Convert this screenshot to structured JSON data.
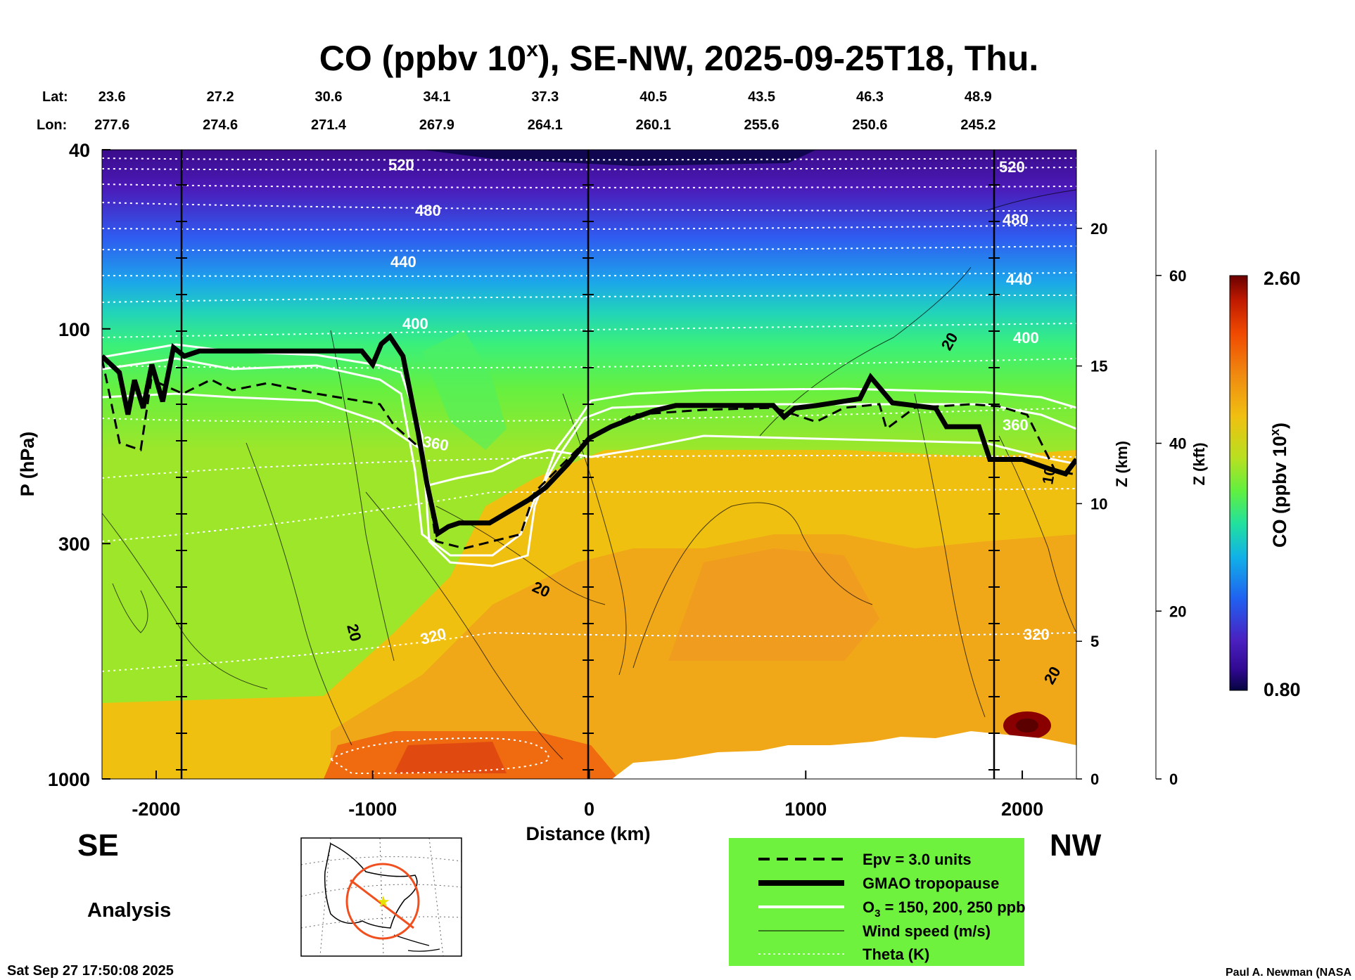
{
  "title": {
    "main": "CO (ppbv 10",
    "sup": "x",
    "rest": "), SE-NW, 2025-09-25T18, Thu."
  },
  "header": {
    "lat_label": "Lat:",
    "lon_label": "Lon:",
    "lat": [
      "23.6",
      "27.2",
      "30.6",
      "34.1",
      "37.3",
      "40.5",
      "43.5",
      "46.3",
      "48.9"
    ],
    "lon": [
      "277.6",
      "274.6",
      "271.4",
      "267.9",
      "264.1",
      "260.1",
      "255.6",
      "250.6",
      "245.2"
    ]
  },
  "axes": {
    "y_label": "P (hPa)",
    "y_ticks": [
      "40",
      "100",
      "300",
      "1000"
    ],
    "x_label": "Distance (km)",
    "x_ticks": [
      "-2000",
      "-1000",
      "0",
      "1000",
      "2000"
    ],
    "z_label": "Z (km)",
    "z_ticks": [
      "0",
      "5",
      "10",
      "15",
      "20"
    ],
    "kft_label": "Z (kft)",
    "kft_ticks": [
      "0",
      "20",
      "40",
      "60"
    ]
  },
  "side_labels": {
    "se": "SE",
    "nw": "NW",
    "analysis": "Analysis"
  },
  "colorbar": {
    "label": "CO (ppbv 10",
    "label_sup": "x",
    "label_end": ")",
    "max": "2.60",
    "min": "0.80"
  },
  "legend": {
    "items": [
      {
        "label": "Epv = 3.0 units"
      },
      {
        "label": "GMAO tropopause"
      },
      {
        "label": "O",
        "sub": "3",
        "rest": " = 150, 200, 250 ppb"
      },
      {
        "label": "Wind speed (m/s)"
      },
      {
        "label": "Theta (K)"
      }
    ],
    "background": "#6ef23e"
  },
  "footer": {
    "timestamp": "Sat Sep 27 17:50:08 2025",
    "credit": "Paul A. Newman (NASA"
  },
  "chart_data": {
    "type": "heatmap",
    "title": "CO (ppbv 10^x), SE-NW, 2025-09-25T18, Thu.",
    "xlabel": "Distance (km)",
    "ylabel": "P (hPa)",
    "xlim": [
      -2250,
      2250
    ],
    "ylim": [
      1000,
      40
    ],
    "y_scale": "log",
    "colorbar": {
      "min": 0.8,
      "max": 2.6,
      "label": "CO (ppbv 10^x)"
    },
    "theta_contours": [
      {
        "label": "520",
        "pressure": 47
      },
      {
        "label": "480",
        "pressure": 60
      },
      {
        "label": "440",
        "pressure": 76
      },
      {
        "label": "400",
        "pressure": 100
      },
      {
        "label": "360",
        "pressure": 185
      },
      {
        "label": "320",
        "pressure": 510
      }
    ],
    "wind_speed_labels": [
      {
        "label": "20",
        "x": -1050,
        "p": 530
      },
      {
        "label": "20",
        "x": -220,
        "p": 370
      },
      {
        "label": "20",
        "x": 1710,
        "p": 108
      },
      {
        "label": "20",
        "x": 2120,
        "p": 610
      },
      {
        "label": "10",
        "x": 2120,
        "p": 240
      }
    ],
    "cross_section": {
      "lat": [
        23.6,
        27.2,
        30.6,
        34.1,
        37.3,
        40.5,
        43.5,
        46.3,
        48.9
      ],
      "lon": [
        277.6,
        274.6,
        271.4,
        267.9,
        264.1,
        260.1,
        255.6,
        250.6,
        245.2
      ]
    },
    "tropopause": {
      "x": [
        -2250,
        -2170,
        -2130,
        -2100,
        -2060,
        -2020,
        -1970,
        -1920,
        -1870,
        -1800,
        -1600,
        -1430,
        -1250,
        -1050,
        -1000,
        -960,
        -920,
        -860,
        -790,
        -750,
        -700,
        -650,
        -600,
        -460,
        -280,
        -200,
        -100,
        0,
        100,
        200,
        300,
        400,
        500,
        850,
        900,
        950,
        1050,
        1250,
        1300,
        1400,
        1500,
        1600,
        1650,
        1800,
        1850,
        2000,
        2130,
        2200,
        2250
      ],
      "p": [
        115,
        125,
        155,
        130,
        150,
        120,
        145,
        110,
        115,
        112,
        112,
        112,
        112,
        112,
        120,
        108,
        104,
        115,
        170,
        220,
        285,
        275,
        270,
        270,
        240,
        225,
        200,
        175,
        165,
        158,
        152,
        148,
        148,
        148,
        157,
        150,
        148,
        143,
        128,
        146,
        148,
        150,
        165,
        165,
        195,
        195,
        205,
        210,
        195
      ]
    },
    "series": [
      {
        "name": "Epv = 3.0 units"
      },
      {
        "name": "GMAO tropopause"
      },
      {
        "name": "O3 = 150, 200, 250 ppb"
      },
      {
        "name": "Wind speed (m/s)"
      },
      {
        "name": "Theta (K)"
      }
    ]
  }
}
